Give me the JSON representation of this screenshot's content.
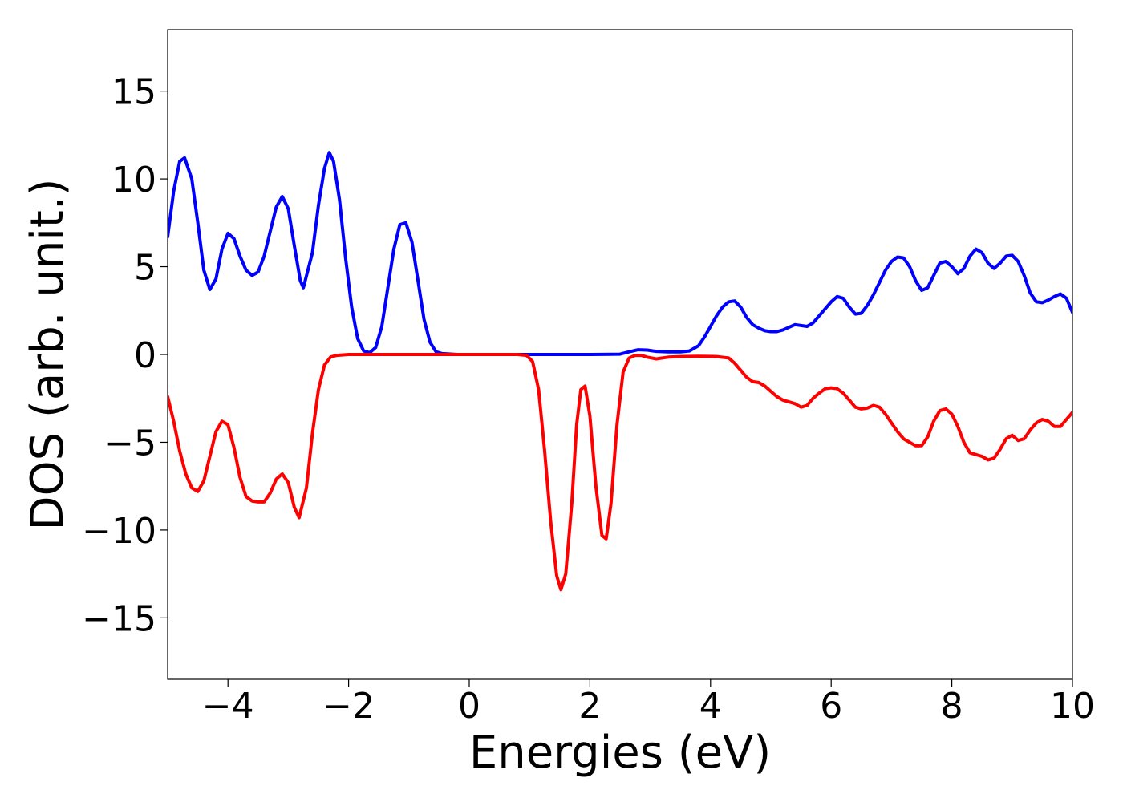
{
  "chart_data": {
    "type": "line",
    "xlabel": "Energies (eV)",
    "ylabel": "DOS (arb. unit.)",
    "xlim": [
      -5,
      10
    ],
    "ylim": [
      -18.5,
      18.5
    ],
    "xticks": [
      -4,
      -2,
      0,
      2,
      4,
      6,
      8,
      10
    ],
    "xtick_labels": [
      "−4",
      "−2",
      "0",
      "2",
      "4",
      "6",
      "8",
      "10"
    ],
    "yticks": [
      -15,
      -10,
      -5,
      0,
      5,
      10,
      15
    ],
    "ytick_labels": [
      "−15",
      "−10",
      "−5",
      "0",
      "5",
      "10",
      "15"
    ],
    "grid": false,
    "series": [
      {
        "color": "#0000ff",
        "points": [
          [
            -5.0,
            6.7
          ],
          [
            -4.9,
            9.3
          ],
          [
            -4.8,
            11.0
          ],
          [
            -4.72,
            11.2
          ],
          [
            -4.6,
            10.0
          ],
          [
            -4.5,
            7.5
          ],
          [
            -4.4,
            4.8
          ],
          [
            -4.3,
            3.7
          ],
          [
            -4.2,
            4.3
          ],
          [
            -4.1,
            6.0
          ],
          [
            -4.0,
            6.9
          ],
          [
            -3.9,
            6.6
          ],
          [
            -3.8,
            5.6
          ],
          [
            -3.7,
            4.8
          ],
          [
            -3.6,
            4.5
          ],
          [
            -3.5,
            4.7
          ],
          [
            -3.4,
            5.6
          ],
          [
            -3.3,
            7.0
          ],
          [
            -3.2,
            8.4
          ],
          [
            -3.1,
            9.0
          ],
          [
            -3.0,
            8.3
          ],
          [
            -2.9,
            6.2
          ],
          [
            -2.8,
            4.2
          ],
          [
            -2.75,
            3.8
          ],
          [
            -2.6,
            5.8
          ],
          [
            -2.5,
            8.5
          ],
          [
            -2.4,
            10.6
          ],
          [
            -2.32,
            11.5
          ],
          [
            -2.25,
            11.0
          ],
          [
            -2.15,
            8.8
          ],
          [
            -2.05,
            5.5
          ],
          [
            -1.95,
            2.7
          ],
          [
            -1.85,
            0.9
          ],
          [
            -1.75,
            0.2
          ],
          [
            -1.65,
            0.1
          ],
          [
            -1.55,
            0.4
          ],
          [
            -1.45,
            1.6
          ],
          [
            -1.35,
            3.8
          ],
          [
            -1.25,
            6.0
          ],
          [
            -1.15,
            7.4
          ],
          [
            -1.05,
            7.5
          ],
          [
            -0.95,
            6.4
          ],
          [
            -0.85,
            4.2
          ],
          [
            -0.75,
            2.0
          ],
          [
            -0.65,
            0.7
          ],
          [
            -0.55,
            0.15
          ],
          [
            -0.45,
            0.05
          ],
          [
            -0.2,
            0.0
          ],
          [
            0.5,
            0.0
          ],
          [
            1.0,
            0.0
          ],
          [
            1.5,
            0.0
          ],
          [
            2.0,
            0.0
          ],
          [
            2.5,
            0.02
          ],
          [
            2.65,
            0.15
          ],
          [
            2.8,
            0.27
          ],
          [
            2.95,
            0.25
          ],
          [
            3.1,
            0.18
          ],
          [
            3.3,
            0.15
          ],
          [
            3.5,
            0.15
          ],
          [
            3.65,
            0.2
          ],
          [
            3.8,
            0.5
          ],
          [
            3.9,
            1.0
          ],
          [
            4.0,
            1.6
          ],
          [
            4.1,
            2.2
          ],
          [
            4.2,
            2.7
          ],
          [
            4.3,
            3.0
          ],
          [
            4.4,
            3.05
          ],
          [
            4.5,
            2.7
          ],
          [
            4.6,
            2.1
          ],
          [
            4.7,
            1.7
          ],
          [
            4.8,
            1.5
          ],
          [
            4.9,
            1.35
          ],
          [
            5.0,
            1.3
          ],
          [
            5.1,
            1.3
          ],
          [
            5.2,
            1.4
          ],
          [
            5.3,
            1.55
          ],
          [
            5.4,
            1.7
          ],
          [
            5.5,
            1.65
          ],
          [
            5.6,
            1.6
          ],
          [
            5.7,
            1.8
          ],
          [
            5.8,
            2.2
          ],
          [
            5.9,
            2.6
          ],
          [
            6.0,
            3.0
          ],
          [
            6.1,
            3.3
          ],
          [
            6.2,
            3.2
          ],
          [
            6.3,
            2.7
          ],
          [
            6.4,
            2.3
          ],
          [
            6.5,
            2.35
          ],
          [
            6.6,
            2.8
          ],
          [
            6.7,
            3.4
          ],
          [
            6.8,
            4.1
          ],
          [
            6.9,
            4.8
          ],
          [
            7.0,
            5.3
          ],
          [
            7.1,
            5.55
          ],
          [
            7.2,
            5.5
          ],
          [
            7.3,
            5.0
          ],
          [
            7.4,
            4.2
          ],
          [
            7.5,
            3.65
          ],
          [
            7.6,
            3.8
          ],
          [
            7.7,
            4.5
          ],
          [
            7.8,
            5.2
          ],
          [
            7.9,
            5.3
          ],
          [
            8.0,
            5.0
          ],
          [
            8.1,
            4.6
          ],
          [
            8.2,
            4.9
          ],
          [
            8.3,
            5.6
          ],
          [
            8.4,
            6.0
          ],
          [
            8.5,
            5.8
          ],
          [
            8.6,
            5.2
          ],
          [
            8.7,
            4.9
          ],
          [
            8.8,
            5.2
          ],
          [
            8.9,
            5.6
          ],
          [
            9.0,
            5.65
          ],
          [
            9.1,
            5.3
          ],
          [
            9.2,
            4.5
          ],
          [
            9.3,
            3.5
          ],
          [
            9.4,
            3.0
          ],
          [
            9.5,
            2.95
          ],
          [
            9.6,
            3.1
          ],
          [
            9.7,
            3.3
          ],
          [
            9.8,
            3.45
          ],
          [
            9.9,
            3.2
          ],
          [
            10.0,
            2.4
          ]
        ]
      },
      {
        "color": "#ff0000",
        "points": [
          [
            -5.0,
            -2.4
          ],
          [
            -4.9,
            -3.8
          ],
          [
            -4.8,
            -5.5
          ],
          [
            -4.7,
            -6.8
          ],
          [
            -4.6,
            -7.6
          ],
          [
            -4.5,
            -7.8
          ],
          [
            -4.4,
            -7.2
          ],
          [
            -4.3,
            -5.8
          ],
          [
            -4.2,
            -4.4
          ],
          [
            -4.1,
            -3.8
          ],
          [
            -4.0,
            -4.0
          ],
          [
            -3.9,
            -5.3
          ],
          [
            -3.8,
            -7.0
          ],
          [
            -3.7,
            -8.1
          ],
          [
            -3.6,
            -8.35
          ],
          [
            -3.5,
            -8.4
          ],
          [
            -3.4,
            -8.4
          ],
          [
            -3.3,
            -7.9
          ],
          [
            -3.2,
            -7.1
          ],
          [
            -3.1,
            -6.8
          ],
          [
            -3.0,
            -7.3
          ],
          [
            -2.9,
            -8.7
          ],
          [
            -2.82,
            -9.3
          ],
          [
            -2.7,
            -7.6
          ],
          [
            -2.6,
            -4.5
          ],
          [
            -2.5,
            -2.0
          ],
          [
            -2.4,
            -0.6
          ],
          [
            -2.3,
            -0.15
          ],
          [
            -2.2,
            -0.05
          ],
          [
            -2.0,
            0.0
          ],
          [
            -1.0,
            0.0
          ],
          [
            0.0,
            0.0
          ],
          [
            0.8,
            0.0
          ],
          [
            0.95,
            -0.05
          ],
          [
            1.05,
            -0.4
          ],
          [
            1.15,
            -2.0
          ],
          [
            1.25,
            -5.5
          ],
          [
            1.35,
            -9.5
          ],
          [
            1.45,
            -12.6
          ],
          [
            1.52,
            -13.4
          ],
          [
            1.6,
            -12.5
          ],
          [
            1.7,
            -8.5
          ],
          [
            1.78,
            -4.0
          ],
          [
            1.85,
            -2.0
          ],
          [
            1.92,
            -1.8
          ],
          [
            2.0,
            -3.5
          ],
          [
            2.1,
            -7.5
          ],
          [
            2.2,
            -10.3
          ],
          [
            2.27,
            -10.5
          ],
          [
            2.35,
            -8.5
          ],
          [
            2.45,
            -4.0
          ],
          [
            2.55,
            -1.0
          ],
          [
            2.65,
            -0.2
          ],
          [
            2.75,
            -0.05
          ],
          [
            2.85,
            -0.05
          ],
          [
            2.95,
            -0.15
          ],
          [
            3.1,
            -0.25
          ],
          [
            3.2,
            -0.2
          ],
          [
            3.3,
            -0.15
          ],
          [
            3.5,
            -0.12
          ],
          [
            3.8,
            -0.1
          ],
          [
            4.1,
            -0.12
          ],
          [
            4.3,
            -0.2
          ],
          [
            4.4,
            -0.5
          ],
          [
            4.5,
            -0.9
          ],
          [
            4.6,
            -1.3
          ],
          [
            4.7,
            -1.55
          ],
          [
            4.8,
            -1.6
          ],
          [
            4.9,
            -1.8
          ],
          [
            5.0,
            -2.1
          ],
          [
            5.1,
            -2.4
          ],
          [
            5.2,
            -2.6
          ],
          [
            5.3,
            -2.7
          ],
          [
            5.4,
            -2.8
          ],
          [
            5.5,
            -3.0
          ],
          [
            5.6,
            -2.9
          ],
          [
            5.7,
            -2.5
          ],
          [
            5.8,
            -2.2
          ],
          [
            5.9,
            -1.95
          ],
          [
            6.0,
            -1.9
          ],
          [
            6.1,
            -1.95
          ],
          [
            6.2,
            -2.2
          ],
          [
            6.3,
            -2.6
          ],
          [
            6.4,
            -3.0
          ],
          [
            6.5,
            -3.1
          ],
          [
            6.6,
            -3.05
          ],
          [
            6.7,
            -2.9
          ],
          [
            6.8,
            -3.0
          ],
          [
            6.9,
            -3.4
          ],
          [
            7.0,
            -3.9
          ],
          [
            7.1,
            -4.4
          ],
          [
            7.2,
            -4.8
          ],
          [
            7.3,
            -5.0
          ],
          [
            7.4,
            -5.2
          ],
          [
            7.5,
            -5.2
          ],
          [
            7.6,
            -4.7
          ],
          [
            7.7,
            -3.8
          ],
          [
            7.8,
            -3.2
          ],
          [
            7.9,
            -3.1
          ],
          [
            8.0,
            -3.4
          ],
          [
            8.1,
            -4.1
          ],
          [
            8.2,
            -5.0
          ],
          [
            8.3,
            -5.6
          ],
          [
            8.4,
            -5.7
          ],
          [
            8.5,
            -5.8
          ],
          [
            8.6,
            -6.0
          ],
          [
            8.7,
            -5.9
          ],
          [
            8.8,
            -5.4
          ],
          [
            8.9,
            -4.8
          ],
          [
            9.0,
            -4.6
          ],
          [
            9.1,
            -4.9
          ],
          [
            9.2,
            -4.8
          ],
          [
            9.3,
            -4.3
          ],
          [
            9.4,
            -3.9
          ],
          [
            9.5,
            -3.7
          ],
          [
            9.6,
            -3.8
          ],
          [
            9.7,
            -4.1
          ],
          [
            9.8,
            -4.1
          ],
          [
            9.9,
            -3.7
          ],
          [
            10.0,
            -3.3
          ]
        ]
      }
    ]
  }
}
